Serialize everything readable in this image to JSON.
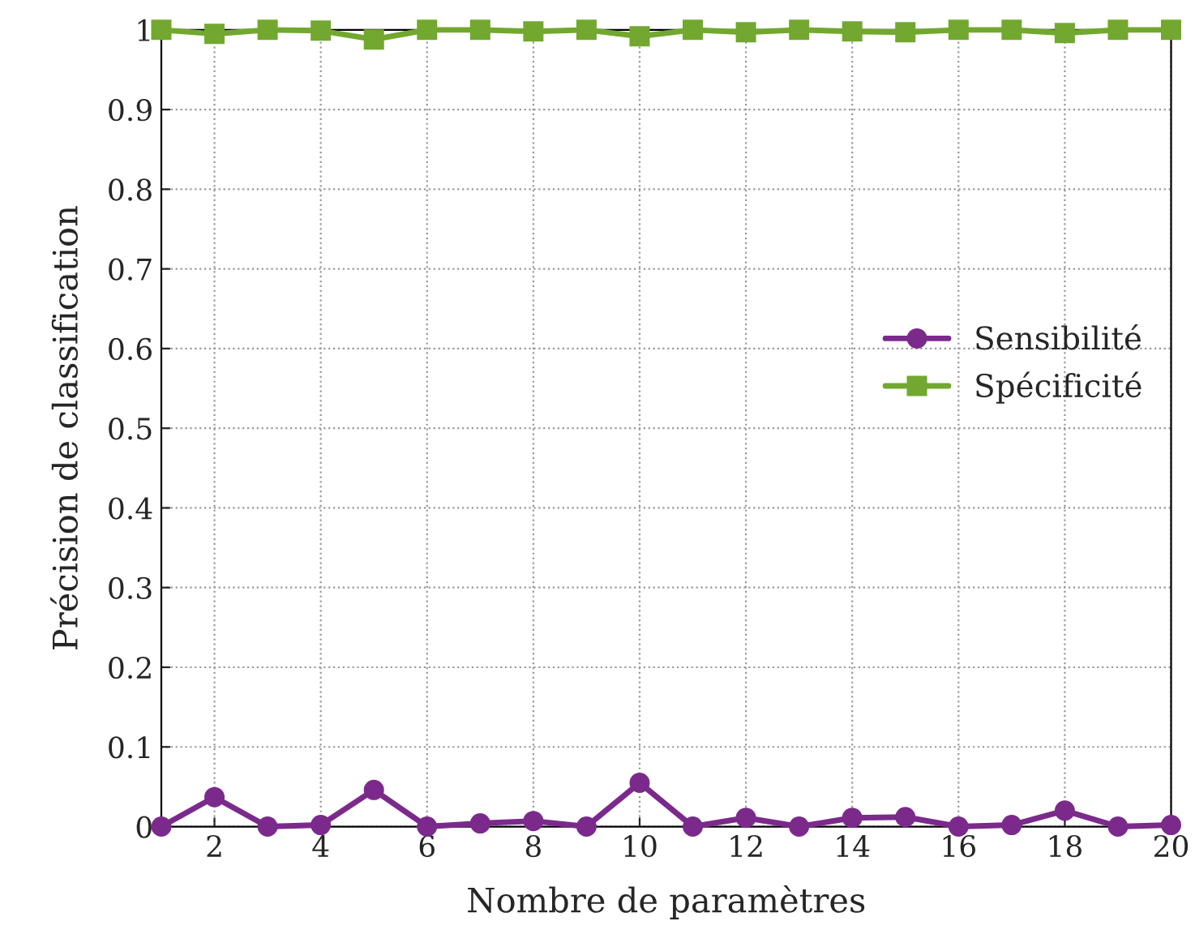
{
  "chart_data": {
    "type": "line",
    "xlabel": "Nombre de paramètres",
    "ylabel": "Précision de classification",
    "x": [
      1,
      2,
      3,
      4,
      5,
      6,
      7,
      8,
      9,
      10,
      11,
      12,
      13,
      14,
      15,
      16,
      17,
      18,
      19,
      20
    ],
    "series": [
      {
        "name": "Sensibilité",
        "color": "#7b2a8c",
        "marker": "circle",
        "values": [
          0,
          0.037,
          0,
          0.002,
          0.046,
          0,
          0.004,
          0.007,
          0,
          0.055,
          0,
          0.011,
          0,
          0.011,
          0.012,
          0,
          0.002,
          0.02,
          0,
          0.002
        ]
      },
      {
        "name": "Spécificité",
        "color": "#72a82f",
        "marker": "square",
        "values": [
          1,
          0.995,
          1,
          0.999,
          0.988,
          1,
          1,
          0.998,
          1,
          0.992,
          1,
          0.997,
          1,
          0.998,
          0.997,
          1,
          1,
          0.996,
          1,
          1
        ]
      }
    ],
    "xlim": [
      1,
      20
    ],
    "xticks": [
      2,
      4,
      6,
      8,
      10,
      12,
      14,
      16,
      18,
      20
    ],
    "ylim": [
      0,
      1
    ],
    "yticks": [
      0,
      0.1,
      0.2,
      0.3,
      0.4,
      0.5,
      0.6,
      0.7,
      0.8,
      0.9,
      1
    ],
    "grid": true,
    "legend": "right",
    "line_style": "solid"
  }
}
